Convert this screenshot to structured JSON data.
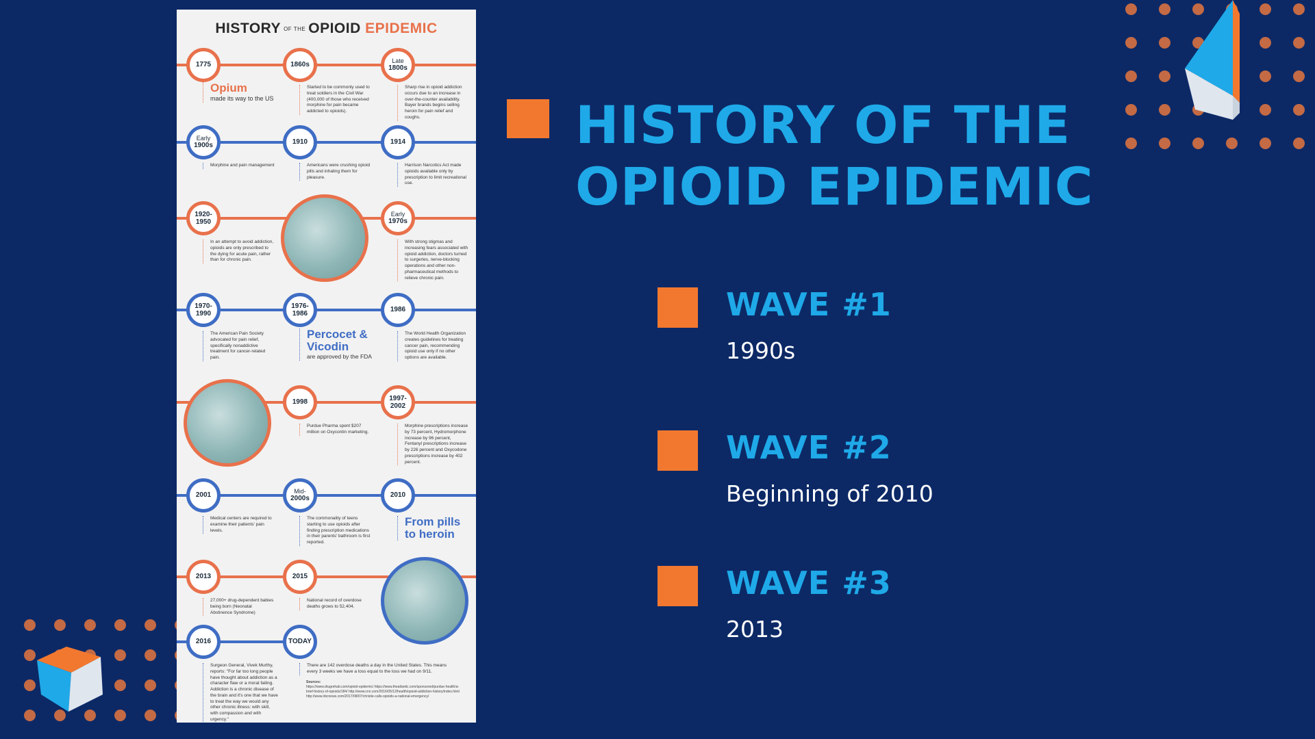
{
  "slide": {
    "title": "HISTORY OF THE OPIOID EPIDEMIC",
    "waves": [
      {
        "label": "WAVE #1",
        "period": "1990s"
      },
      {
        "label": "WAVE #2",
        "period": "Beginning of 2010"
      },
      {
        "label": "WAVE #3",
        "period": "2013"
      }
    ],
    "colors": {
      "background": "#0c2966",
      "accent_blue": "#1fa9e8",
      "accent_orange": "#f2782f"
    }
  },
  "infographic": {
    "title_part1": "HISTORY",
    "title_of": "OF THE",
    "title_part2": "OPIOID",
    "title_part3": "EPIDEMIC",
    "nodes": {
      "n1775": "1775",
      "n1860s": "1860s",
      "nlate_a": "Late",
      "nlate_b": "1800s",
      "nearly1900_a": "Early",
      "nearly1900_b": "1900s",
      "n1910": "1910",
      "n1914": "1914",
      "n1920": "1920-\n1950",
      "nearly1970_a": "Early",
      "nearly1970_b": "1970s",
      "n1970": "1970-\n1990",
      "n1976": "1976-\n1986",
      "n1986": "1986",
      "n1998": "1998",
      "n1997": "1997-\n2002",
      "n2001": "2001",
      "nmid_a": "Mid-",
      "nmid_b": "2000s",
      "n2010": "2010",
      "n2013": "2013",
      "n2015": "2015",
      "n2016": "2016",
      "ntoday": "TODAY"
    },
    "texts": {
      "opium_big": "Opium",
      "opium_small": "made its way to the US",
      "t1860": "Started to be commonly used to treat soldiers in the Civil War (400,000 of those who received morphine for pain became addicted to opioids).",
      "tlate": "Sharp rise in opioid addiction occurs due to an increase in over-the-counter availability. Bayer brands begins selling heroin for pain relief and coughs.",
      "t1900": "Morphine and pain management",
      "t1910": "Americans were crushing opioid pills and inhaling them for pleasure.",
      "t1914": "Harrison Narcotics Act made opioids available only by prescription to limit recreational use.",
      "t1920": "In an attempt to avoid addiction, opioids are only prescribed to the dying for acute pain, rather than for chronic pain.",
      "t1970early": "With strong stigmas and increasing fears associated with opioid addiction, doctors turned to surgeries, nerve-blocking operations and other non-pharmaceutical methods to relieve chronic pain.",
      "t1970": "The American Pain Society advocated for pain relief, specifically nonaddictive treatment for cancer-related pain.",
      "percocet_big": "Percocet & Vicodin",
      "percocet_small": "are approved by the FDA",
      "t1986": "The World Health Organization creates guidelines for treating cancer pain, recommending opioid use only if no other options are available.",
      "t1998": "Purdue Pharma spent $207 million on Oxycontin marketing.",
      "t1997": "Morphine prescriptions increase by 73 percent, Hydromorphone increase by 96 percent, Fentanyl prescriptions increase by 226 percent and Oxycodone prescriptions increase by 402 percent.",
      "t2001": "Medical centers are required to examine their patients' pain levels.",
      "tmid": "The commonality of teens starting to use opioids after finding prescription medications in their parents' bathroom is first reported.",
      "heroin_big": "From pills to heroin",
      "t2013": "27,000+ drug-dependent babies being born (Neonatal Abstinence Syndrome)",
      "t2015": "National record of overdose deaths grows to 52,404.",
      "t2016": "Surgeon General, Vivek Murthy, reports: \"For far too long people have thought about addiction as a character flaw or a moral failing. Addiction is a chronic disease of the brain and it's one that we have to treat the way we would any other chronic illness: with skill, with compassion and with urgency.\"",
      "ttoday": "There are 142 overdose deaths a day in the United States. This means every 3 weeks we have a loss equal to the loss we had on 9/11.",
      "sources_label": "Sources:",
      "sources": "https://www.drugrehab.com/opioid-epidemic/ https://www.theatlantic.com/sponsored/purdue-health/a-brief-history-of-opioids/184/ http://www.cnn.com/2016/05/12/health/opioid-addiction-history/index.html http://www.nbcnews.com/2017/08/07/christie-calls-opioids-a-national-emergency/"
    }
  }
}
